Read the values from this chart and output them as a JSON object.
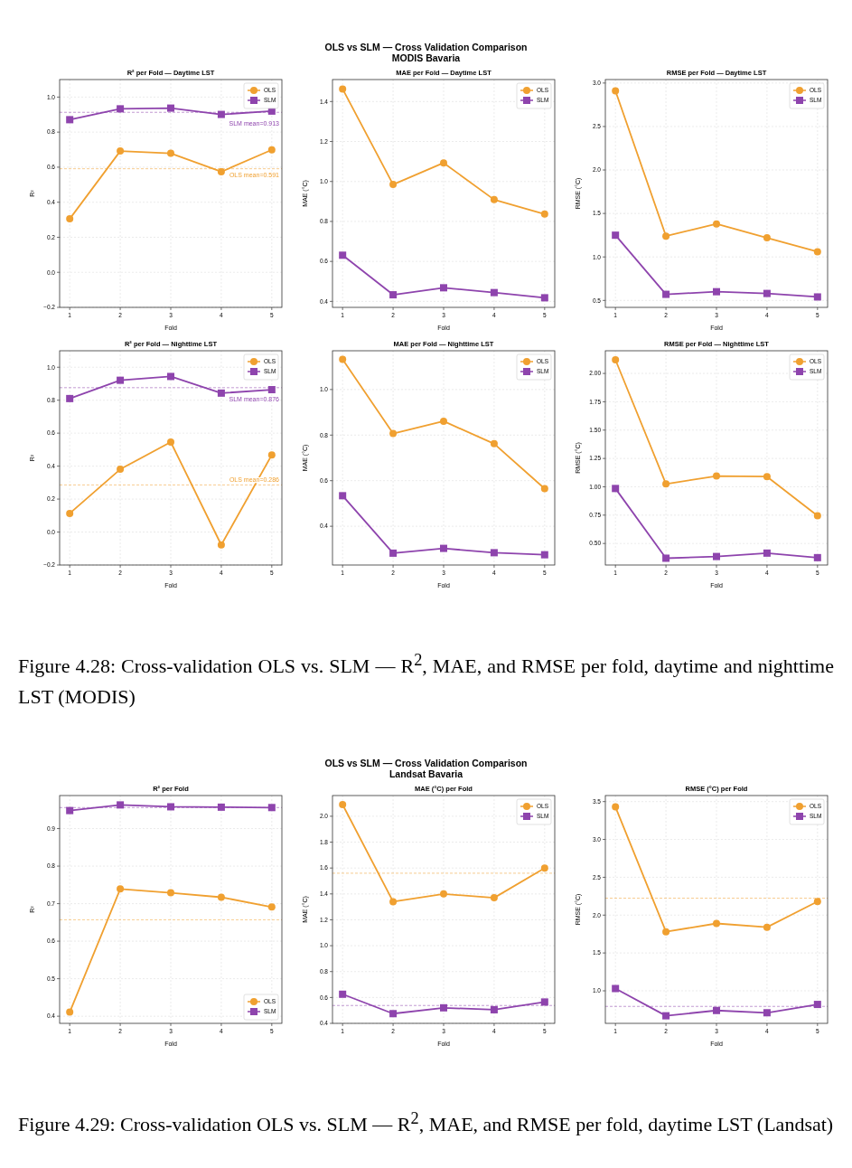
{
  "chart_data": [
    {
      "type": "line",
      "title": "R² per Fold — Daytime LST",
      "xlabel": "Fold",
      "ylabel": "R²",
      "annotations": [
        "OLS vs SLM — Cross Validation Comparison",
        "MODIS Bavaria"
      ],
      "x": [
        1,
        2,
        3,
        4,
        5
      ],
      "xlim": [
        0.8,
        5.2
      ],
      "xticks": [
        1,
        2,
        3,
        4,
        5
      ],
      "ylim": [
        -0.2,
        1.1
      ],
      "yticks": [
        {
          "value": -0.2,
          "label": "−0.2"
        },
        {
          "value": 0,
          "label": "0.0"
        },
        0.2,
        0.4,
        0.6,
        0.8,
        {
          "value": 1,
          "label": "1.0"
        }
      ],
      "grid": true,
      "legend": "top right",
      "series": [
        {
          "name": "OLS",
          "color": "#f0a030",
          "marker": "circle",
          "values": [
            0.305,
            0.692,
            0.679,
            0.574,
            0.699
          ]
        },
        {
          "name": "SLM",
          "color": "#8e44ad",
          "marker": "square",
          "values": [
            0.871,
            0.933,
            0.937,
            0.901,
            0.92
          ]
        }
      ],
      "ref_lines": [
        {
          "axis": "y",
          "value": 0.913,
          "label": "SLM mean=0.913",
          "color": "#8e44ad",
          "line_style": "dashed"
        },
        {
          "axis": "y",
          "value": 0.591,
          "label": "OLS mean=0.591",
          "color": "#f0a030",
          "line_style": "dashed"
        }
      ]
    },
    {
      "type": "line",
      "title": "MAE per Fold — Daytime LST",
      "xlabel": "Fold",
      "ylabel": "MAE (°C)",
      "x": [
        1,
        2,
        3,
        4,
        5
      ],
      "xlim": [
        0.8,
        5.2
      ],
      "xticks": [
        1,
        2,
        3,
        4,
        5
      ],
      "ylim": [
        0.37,
        1.51
      ],
      "yticks": [
        0.4,
        0.6,
        0.8,
        {
          "value": 1,
          "label": "1.0"
        },
        1.2,
        1.4
      ],
      "grid": true,
      "legend": "top right",
      "series": [
        {
          "name": "OLS",
          "color": "#f0a030",
          "marker": "circle",
          "values": [
            1.463,
            0.985,
            1.093,
            0.909,
            0.837
          ]
        },
        {
          "name": "SLM",
          "color": "#8e44ad",
          "marker": "square",
          "values": [
            0.631,
            0.433,
            0.468,
            0.444,
            0.418
          ]
        }
      ]
    },
    {
      "type": "line",
      "title": "RMSE per Fold — Daytime LST",
      "xlabel": "Fold",
      "ylabel": "RMSE (°C)",
      "x": [
        1,
        2,
        3,
        4,
        5
      ],
      "xlim": [
        0.8,
        5.2
      ],
      "xticks": [
        1,
        2,
        3,
        4,
        5
      ],
      "ylim": [
        0.42,
        3.04
      ],
      "yticks": [
        0.5,
        {
          "value": 1,
          "label": "1.0"
        },
        1.5,
        {
          "value": 2,
          "label": "2.0"
        },
        2.5,
        {
          "value": 3,
          "label": "3.0"
        }
      ],
      "grid": true,
      "legend": "top right",
      "series": [
        {
          "name": "OLS",
          "color": "#f0a030",
          "marker": "circle",
          "values": [
            2.91,
            1.24,
            1.38,
            1.22,
            1.06
          ]
        },
        {
          "name": "SLM",
          "color": "#8e44ad",
          "marker": "square",
          "values": [
            1.25,
            0.57,
            0.6,
            0.58,
            0.54
          ]
        }
      ]
    },
    {
      "type": "line",
      "title": "R² per Fold — Nighttime LST",
      "xlabel": "Fold",
      "ylabel": "R²",
      "x": [
        1,
        2,
        3,
        4,
        5
      ],
      "xlim": [
        0.8,
        5.2
      ],
      "xticks": [
        1,
        2,
        3,
        4,
        5
      ],
      "ylim": [
        -0.2,
        1.1
      ],
      "yticks": [
        {
          "value": -0.2,
          "label": "−0.2"
        },
        {
          "value": 0,
          "label": "0.0"
        },
        0.2,
        0.4,
        0.6,
        0.8,
        {
          "value": 1,
          "label": "1.0"
        }
      ],
      "grid": true,
      "legend": "top right",
      "series": [
        {
          "name": "OLS",
          "color": "#f0a030",
          "marker": "circle",
          "values": [
            0.113,
            0.381,
            0.546,
            -0.078,
            0.468
          ]
        },
        {
          "name": "SLM",
          "color": "#8e44ad",
          "marker": "square",
          "values": [
            0.81,
            0.921,
            0.944,
            0.843,
            0.864
          ]
        }
      ],
      "ref_lines": [
        {
          "axis": "y",
          "value": 0.876,
          "label": "SLM mean=0.876",
          "color": "#8e44ad",
          "line_style": "dashed"
        },
        {
          "axis": "y",
          "value": 0.286,
          "label": "OLS mean=0.286",
          "color": "#f0a030",
          "line_style": "dashed"
        }
      ]
    },
    {
      "type": "line",
      "title": "MAE per Fold — Nighttime LST",
      "xlabel": "Fold",
      "ylabel": "MAE (°C)",
      "x": [
        1,
        2,
        3,
        4,
        5
      ],
      "xlim": [
        0.8,
        5.2
      ],
      "xticks": [
        1,
        2,
        3,
        4,
        5
      ],
      "ylim": [
        0.23,
        1.17
      ],
      "yticks": [
        0.4,
        0.6,
        0.8,
        {
          "value": 1,
          "label": "1.0"
        }
      ],
      "grid": true,
      "legend": "top right",
      "series": [
        {
          "name": "OLS",
          "color": "#f0a030",
          "marker": "circle",
          "values": [
            1.132,
            0.807,
            0.861,
            0.762,
            0.565
          ]
        },
        {
          "name": "SLM",
          "color": "#8e44ad",
          "marker": "square",
          "values": [
            0.534,
            0.282,
            0.303,
            0.284,
            0.275
          ]
        }
      ]
    },
    {
      "type": "line",
      "title": "RMSE per Fold — Nighttime LST",
      "xlabel": "Fold",
      "ylabel": "RMSE (°C)",
      "annotations": [
        "Figure 4.28: Cross-validation OLS vs. SLM — R$^{2}$, MAE, and RMSE per fold, daytime and nighttime LST (MODIS)"
      ],
      "x": [
        1,
        2,
        3,
        4,
        5
      ],
      "xlim": [
        0.8,
        5.2
      ],
      "xticks": [
        1,
        2,
        3,
        4,
        5
      ],
      "ylim": [
        0.31,
        2.2
      ],
      "yticks": [
        {
          "value": 0.5,
          "label": "0.50"
        },
        0.75,
        {
          "value": 1,
          "label": "1.00"
        },
        1.25,
        {
          "value": 1.5,
          "label": "1.50"
        },
        1.75,
        {
          "value": 2,
          "label": "2.00"
        }
      ],
      "grid": true,
      "legend": "top right",
      "series": [
        {
          "name": "OLS",
          "color": "#f0a030",
          "marker": "circle",
          "values": [
            2.12,
            1.025,
            1.095,
            1.09,
            0.745
          ]
        },
        {
          "name": "SLM",
          "color": "#8e44ad",
          "marker": "square",
          "values": [
            0.985,
            0.37,
            0.385,
            0.415,
            0.375
          ]
        }
      ]
    },
    {
      "type": "line",
      "title": "R² per Fold",
      "xlabel": "Fold",
      "ylabel": "R²",
      "annotations": [
        "OLS vs SLM — Cross Validation Comparison",
        "Landsat Bavaria"
      ],
      "x": [
        1,
        2,
        3,
        4,
        5
      ],
      "xlim": [
        0.8,
        5.2
      ],
      "xticks": [
        1,
        2,
        3,
        4,
        5
      ],
      "ylim": [
        0.381,
        0.988
      ],
      "yticks": [
        0.4,
        0.5,
        0.6,
        0.7,
        0.8,
        0.9
      ],
      "grid": true,
      "legend": "bottom right",
      "series": [
        {
          "name": "OLS",
          "color": "#f0a030",
          "marker": "circle",
          "values": [
            0.411,
            0.739,
            0.729,
            0.717,
            0.691
          ]
        },
        {
          "name": "SLM",
          "color": "#8e44ad",
          "marker": "square",
          "values": [
            0.948,
            0.963,
            0.958,
            0.957,
            0.956
          ]
        }
      ],
      "ref_lines": [
        {
          "axis": "y",
          "value": 0.956,
          "color": "#8e44ad",
          "line_style": "dashed"
        },
        {
          "axis": "y",
          "value": 0.657,
          "color": "#f0a030",
          "line_style": "dashed"
        }
      ]
    },
    {
      "type": "line",
      "title": "MAE (°C) per Fold",
      "xlabel": "Fold",
      "ylabel": "MAE (°C)",
      "x": [
        1,
        2,
        3,
        4,
        5
      ],
      "xlim": [
        0.8,
        5.2
      ],
      "xticks": [
        1,
        2,
        3,
        4,
        5
      ],
      "ylim": [
        0.4,
        2.16
      ],
      "yticks": [
        0.4,
        0.6,
        0.8,
        {
          "value": 1,
          "label": "1.0"
        },
        1.2,
        1.4,
        1.6,
        1.8,
        {
          "value": 2,
          "label": "2.0"
        }
      ],
      "grid": true,
      "legend": "top right",
      "series": [
        {
          "name": "OLS",
          "color": "#f0a030",
          "marker": "circle",
          "values": [
            2.09,
            1.34,
            1.4,
            1.37,
            1.6
          ]
        },
        {
          "name": "SLM",
          "color": "#8e44ad",
          "marker": "square",
          "values": [
            0.625,
            0.475,
            0.52,
            0.505,
            0.565
          ]
        }
      ],
      "ref_lines": [
        {
          "axis": "y",
          "value": 1.56,
          "color": "#f0a030",
          "line_style": "dashed"
        },
        {
          "axis": "y",
          "value": 0.538,
          "color": "#8e44ad",
          "line_style": "dashed"
        }
      ]
    },
    {
      "type": "line",
      "title": "RMSE (°C) per Fold",
      "xlabel": "Fold",
      "ylabel": "RMSE (°C)",
      "annotations": [
        "Figure 4.29: Cross-validation OLS vs. SLM — R$^{2}$, MAE, and RMSE per fold, daytime LST (Landsat)"
      ],
      "x": [
        1,
        2,
        3,
        4,
        5
      ],
      "xlim": [
        0.8,
        5.2
      ],
      "xticks": [
        1,
        2,
        3,
        4,
        5
      ],
      "ylim": [
        0.57,
        3.58
      ],
      "yticks": [
        {
          "value": 1,
          "label": "1.0"
        },
        1.5,
        {
          "value": 2,
          "label": "2.0"
        },
        2.5,
        {
          "value": 3,
          "label": "3.0"
        },
        3.5
      ],
      "grid": true,
      "legend": "top right",
      "series": [
        {
          "name": "OLS",
          "color": "#f0a030",
          "marker": "circle",
          "values": [
            3.43,
            1.78,
            1.89,
            1.84,
            2.18
          ]
        },
        {
          "name": "SLM",
          "color": "#8e44ad",
          "marker": "square",
          "values": [
            1.03,
            0.67,
            0.74,
            0.71,
            0.82
          ]
        }
      ],
      "ref_lines": [
        {
          "axis": "y",
          "value": 2.224,
          "color": "#f0a030",
          "line_style": "dashed"
        },
        {
          "axis": "y",
          "value": 0.794,
          "color": "#8e44ad",
          "line_style": "dashed"
        }
      ]
    }
  ]
}
